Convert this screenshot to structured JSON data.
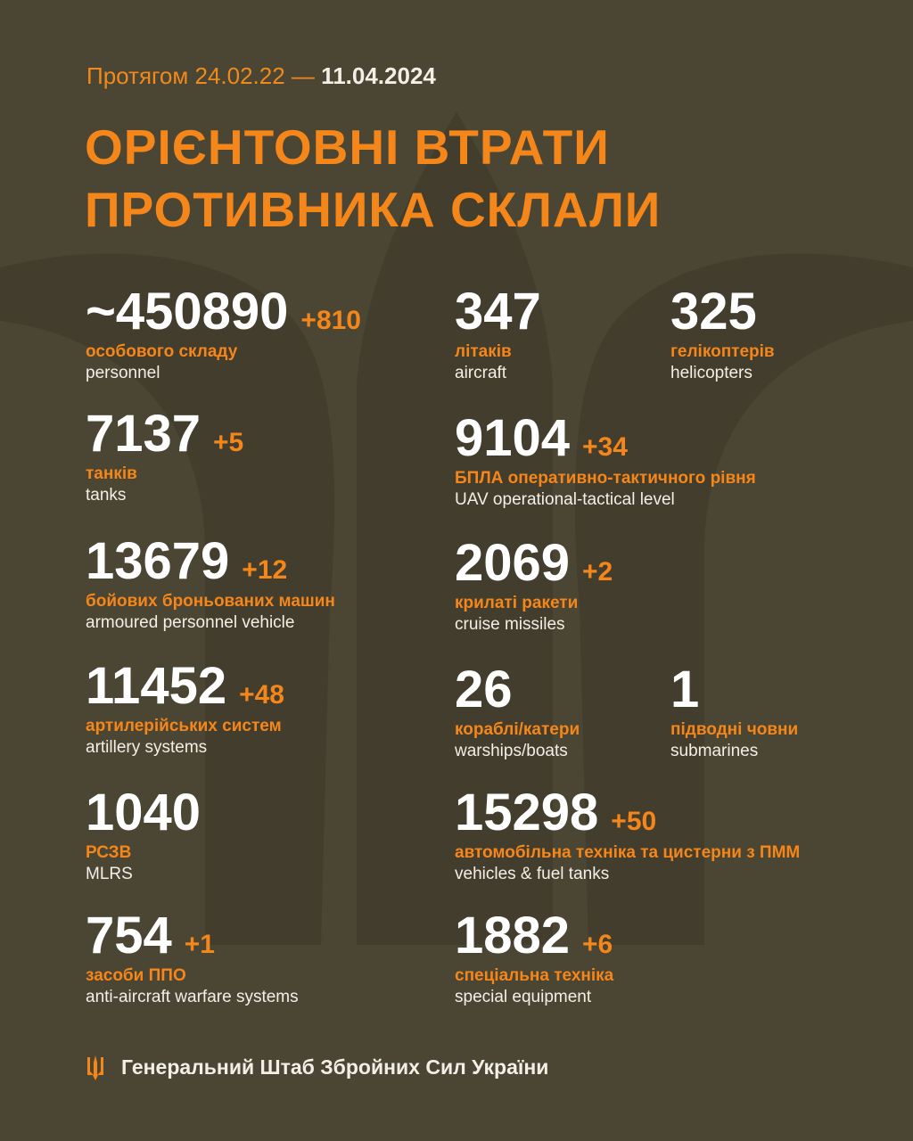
{
  "header": {
    "period": "Протягом 24.02.22 —",
    "date": "11.04.2024",
    "title_lines": [
      "ОРІЄНТОВНІ ВТРАТИ",
      "ПРОТИВНИКА СКЛАЛИ"
    ]
  },
  "items": [
    {
      "value": "~450890",
      "delta": "+810",
      "label_uk": "особового складу",
      "label_en": "personnel"
    },
    {
      "value": "347",
      "label_uk": "літаків",
      "label_en": "aircraft"
    },
    {
      "value": "325",
      "label_uk": "гелікоптерів",
      "label_en": "helicopters"
    },
    {
      "value": "7137",
      "delta": "+5",
      "label_uk": "танків",
      "label_en": "tanks"
    },
    {
      "value": "9104",
      "delta": "+34",
      "label_uk": "БПЛА оперативно-тактичного рівня",
      "label_en": "UAV operational-tactical level"
    },
    {
      "value": "13679",
      "delta": "+12",
      "label_uk": "бойових броньованих машин",
      "label_en": "armoured personnel vehicle"
    },
    {
      "value": "2069",
      "delta": "+2",
      "label_uk": "крилаті ракети",
      "label_en": "cruise missiles"
    },
    {
      "value": "11452",
      "delta": "+48",
      "label_uk": "артилерійських систем",
      "label_en": "artillery systems"
    },
    {
      "value": "26",
      "label_uk": "кораблі/катери",
      "label_en": "warships/boats"
    },
    {
      "value": "1",
      "label_uk": "підводні човни",
      "label_en": "submarines"
    },
    {
      "value": "1040",
      "label_uk": "РСЗВ",
      "label_en": "MLRS"
    },
    {
      "value": "15298",
      "delta": "+50",
      "label_uk": "автомобільна техніка та цистерни з ПММ",
      "label_en": "vehicles & fuel tanks"
    },
    {
      "value": "754",
      "delta": "+1",
      "label_uk": "засоби ППО",
      "label_en": "anti-aircraft warfare systems"
    },
    {
      "value": "1882",
      "delta": "+6",
      "label_uk": "спеціальна техніка",
      "label_en": "special equipment"
    }
  ],
  "footer": {
    "text": "Генеральний Штаб Збройних Сил України"
  }
}
